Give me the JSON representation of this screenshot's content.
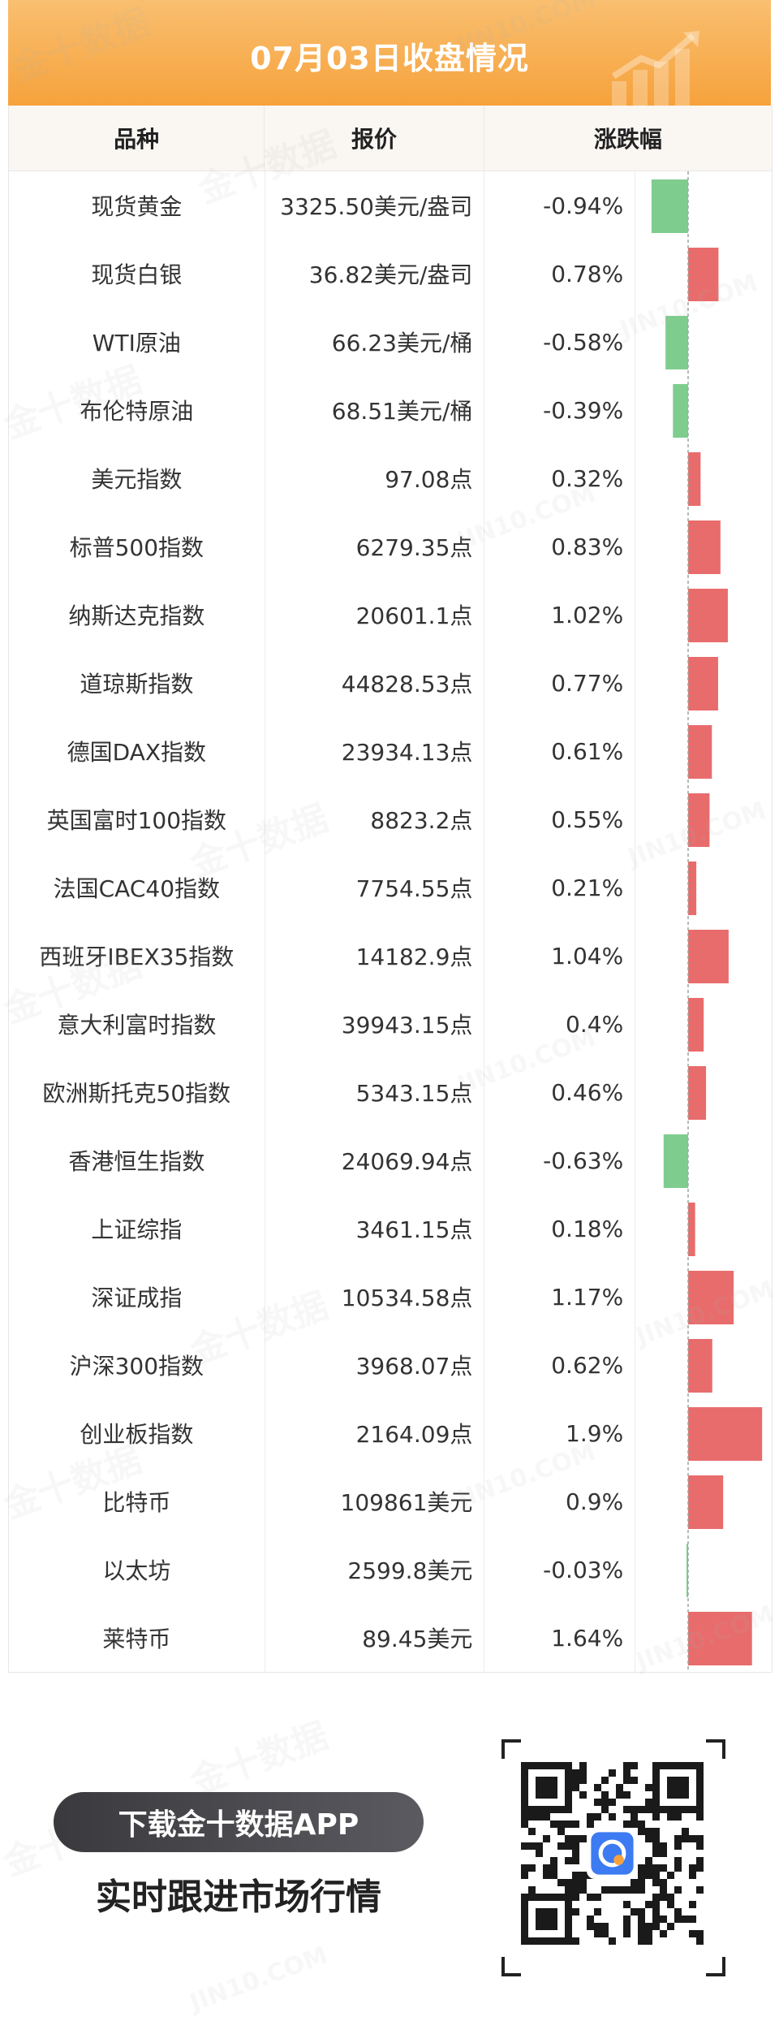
{
  "banner": {
    "title": "07月03日收盘情况"
  },
  "table": {
    "headers": {
      "name": "品种",
      "price": "报价",
      "change": "涨跌幅"
    }
  },
  "chart_data": {
    "type": "bar",
    "orientation": "horizontal",
    "categories": [
      "现货黄金",
      "现货白银",
      "WTI原油",
      "布伦特原油",
      "美元指数",
      "标普500指数",
      "纳斯达克指数",
      "道琼斯指数",
      "德国DAX指数",
      "英国富时100指数",
      "法国CAC40指数",
      "西班牙IBEX35指数",
      "意大利富时指数",
      "欧洲斯托克50指数",
      "香港恒生指数",
      "上证综指",
      "深证成指",
      "沪深300指数",
      "创业板指数",
      "比特币",
      "以太坊",
      "莱特币"
    ],
    "prices": [
      "3325.50美元/盎司",
      "36.82美元/盎司",
      "66.23美元/桶",
      "68.51美元/桶",
      "97.08点",
      "6279.35点",
      "20601.1点",
      "44828.53点",
      "23934.13点",
      "8823.2点",
      "7754.55点",
      "14182.9点",
      "39943.15点",
      "5343.15点",
      "24069.94点",
      "3461.15点",
      "10534.58点",
      "3968.07点",
      "2164.09点",
      "109861美元",
      "2599.8美元",
      "89.45美元"
    ],
    "change_labels": [
      "-0.94%",
      "0.78%",
      "-0.58%",
      "-0.39%",
      "0.32%",
      "0.83%",
      "1.02%",
      "0.77%",
      "0.61%",
      "0.55%",
      "0.21%",
      "1.04%",
      "0.4%",
      "0.46%",
      "-0.63%",
      "0.18%",
      "1.17%",
      "0.62%",
      "1.9%",
      "0.9%",
      "-0.03%",
      "1.64%"
    ],
    "values": [
      -0.94,
      0.78,
      -0.58,
      -0.39,
      0.32,
      0.83,
      1.02,
      0.77,
      0.61,
      0.55,
      0.21,
      1.04,
      0.4,
      0.46,
      -0.63,
      0.18,
      1.17,
      0.62,
      1.9,
      0.9,
      -0.03,
      1.64
    ],
    "colors": {
      "positive": "#e86c6c",
      "negative": "#7fcd8e",
      "zero_line": "#9aa8a0"
    }
  },
  "watermark": {
    "brand": "金十数据",
    "site": "JIN10.COM"
  },
  "footer": {
    "download_label": "下载金十数据APP",
    "tagline": "实时跟进市场行情",
    "qr_icon": "qr-code-icon"
  }
}
